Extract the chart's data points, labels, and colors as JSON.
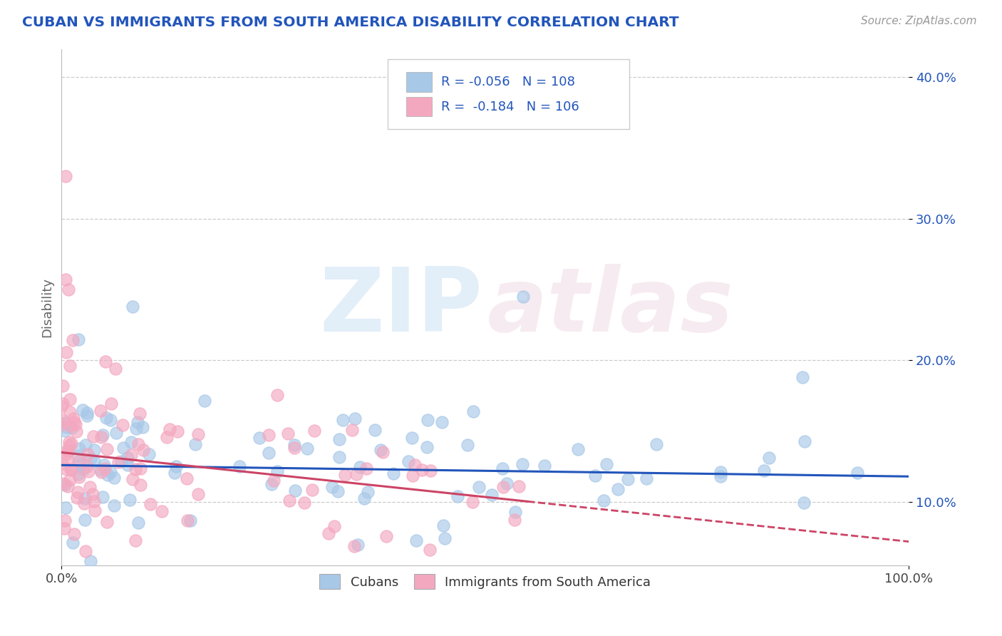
{
  "title": "CUBAN VS IMMIGRANTS FROM SOUTH AMERICA DISABILITY CORRELATION CHART",
  "source_text": "Source: ZipAtlas.com",
  "ylabel": "Disability",
  "legend_labels": [
    "Cubans",
    "Immigrants from South America"
  ],
  "legend_R": [
    -0.056,
    -0.184
  ],
  "legend_N": [
    108,
    106
  ],
  "blue_color": "#a8c8e8",
  "pink_color": "#f4a8c0",
  "blue_line_color": "#2255bb",
  "pink_line_color": "#cc4466",
  "title_color": "#2255bb",
  "stats_color": "#2255bb",
  "xlim": [
    0.0,
    1.0
  ],
  "ylim": [
    0.055,
    0.42
  ],
  "yticks": [
    0.1,
    0.2,
    0.3,
    0.4
  ],
  "ytick_labels": [
    "10.0%",
    "20.0%",
    "30.0%",
    "40.0%"
  ],
  "xticks": [
    0.0,
    1.0
  ],
  "xtick_labels": [
    "0.0%",
    "100.0%"
  ],
  "n_blue": 108,
  "n_pink": 106,
  "seed_blue": 7,
  "seed_pink": 13
}
